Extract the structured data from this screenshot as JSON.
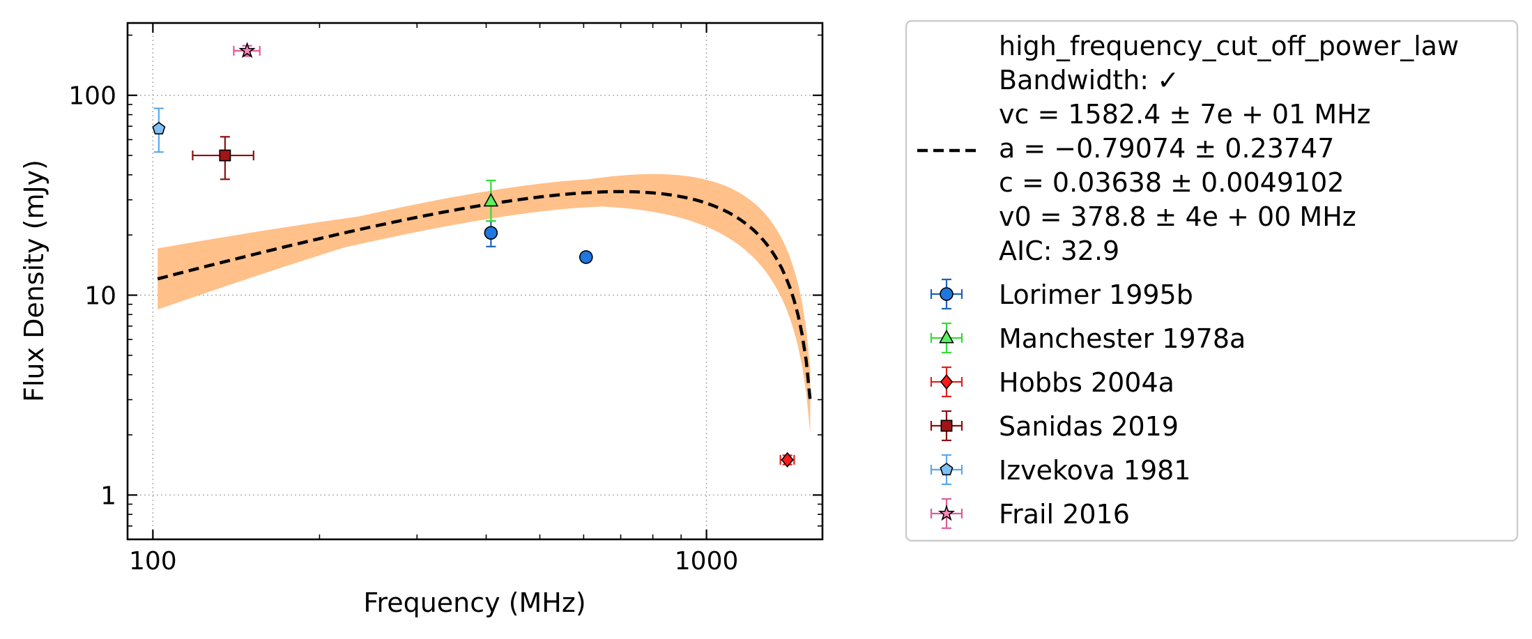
{
  "chart_data": {
    "type": "scatter",
    "xlabel": "Frequency (MHz)",
    "ylabel": "Flux Density (mJy)",
    "xscale": "log",
    "yscale": "log",
    "xlim": [
      90,
      1620
    ],
    "ylim": [
      0.6,
      230
    ],
    "grid": true,
    "legend_position": "outside-right",
    "x_ticks": [
      {
        "value": 100,
        "label": "100"
      },
      {
        "value": 1000,
        "label": "1000"
      }
    ],
    "y_ticks": [
      {
        "value": 1,
        "label": "1"
      },
      {
        "value": 10,
        "label": "10"
      },
      {
        "value": 100,
        "label": "100"
      }
    ],
    "fit": {
      "model": "high_frequency_cut_off_power_law",
      "legend_lines": [
        "high_frequency_cut_off_power_law",
        "Bandwidth: ✓",
        "vc = 1582.4 ± 7e + 01 MHz",
        "a = −0.79074 ± 0.23747",
        "c = 0.03638 ± 0.0049102",
        "v0 = 378.8 ± 4e + 00 MHz",
        "AIC: 32.9"
      ],
      "vc": 1582.4,
      "a": -0.79074,
      "c": 0.03638,
      "v0": 378.8,
      "x_range": [
        102,
        1540
      ],
      "line_color": "#000000",
      "band_color": "#ffc08a"
    },
    "series": [
      {
        "name": "Lorimer 1995b",
        "marker": "circle",
        "color": "#1f77e0",
        "err_color": "#1f5fbf",
        "points": [
          {
            "x": 408,
            "y": 20.5,
            "yerr_lo": 3,
            "yerr_hi": 3,
            "xerr": 0
          },
          {
            "x": 606,
            "y": 15.5,
            "yerr_lo": 0.8,
            "yerr_hi": 0.8,
            "xerr": 0
          }
        ]
      },
      {
        "name": "Manchester 1978a",
        "marker": "triangle",
        "color": "#5cf05c",
        "err_color": "#33dd33",
        "points": [
          {
            "x": 408,
            "y": 29.5,
            "yerr_lo": 6,
            "yerr_hi": 8,
            "xerr": 0
          }
        ]
      },
      {
        "name": "Hobbs 2004a",
        "marker": "diamond",
        "color": "#ff1a1a",
        "err_color": "#e02020",
        "points": [
          {
            "x": 1400,
            "y": 1.5,
            "yerr_lo": 0.08,
            "yerr_hi": 0.08,
            "xerr": 40
          }
        ]
      },
      {
        "name": "Sanidas 2019",
        "marker": "square",
        "color": "#a01515",
        "err_color": "#8b0f0f",
        "points": [
          {
            "x": 135,
            "y": 50,
            "yerr_lo": 12,
            "yerr_hi": 12,
            "xerr": 17
          }
        ]
      },
      {
        "name": "Izvekova 1981",
        "marker": "pentagon",
        "color": "#7fc0f5",
        "err_color": "#5aa8ee",
        "points": [
          {
            "x": 102.5,
            "y": 68,
            "yerr_lo": 16,
            "yerr_hi": 18,
            "xerr": 0
          }
        ]
      },
      {
        "name": "Frail 2016",
        "marker": "star",
        "color": "#ff88bb",
        "err_color": "#e05aa0",
        "points": [
          {
            "x": 148,
            "y": 167,
            "yerr_lo": 10,
            "yerr_hi": 10,
            "xerr": 8
          }
        ]
      }
    ]
  }
}
